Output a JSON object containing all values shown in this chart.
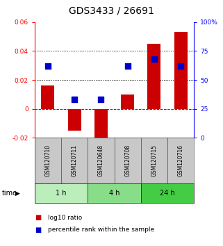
{
  "title": "GDS3433 / 26691",
  "samples": [
    "GSM120710",
    "GSM120711",
    "GSM120648",
    "GSM120708",
    "GSM120715",
    "GSM120716"
  ],
  "log10_ratio": [
    0.016,
    -0.015,
    -0.023,
    0.01,
    0.045,
    0.053
  ],
  "percentile_rank": [
    0.62,
    0.33,
    0.33,
    0.62,
    0.68,
    0.62
  ],
  "bar_color": "#cc0000",
  "dot_color": "#0000cc",
  "left_ylim": [
    -0.02,
    0.06
  ],
  "right_ylim": [
    0,
    100
  ],
  "left_yticks": [
    -0.02,
    0.0,
    0.02,
    0.04,
    0.06
  ],
  "right_yticks": [
    0,
    25,
    50,
    75,
    100
  ],
  "dotted_lines": [
    0.02,
    0.04
  ],
  "time_groups": [
    {
      "label": "1 h",
      "cols": [
        0,
        1
      ],
      "color": "#bbeebb"
    },
    {
      "label": "4 h",
      "cols": [
        2,
        3
      ],
      "color": "#88dd88"
    },
    {
      "label": "24 h",
      "cols": [
        4,
        5
      ],
      "color": "#44cc44"
    }
  ],
  "sample_bg": "#c8c8c8",
  "bar_width": 0.5,
  "dot_size": 30,
  "title_fontsize": 10,
  "tick_fontsize": 6.5,
  "sample_fontsize": 5.5,
  "time_fontsize": 7,
  "legend_fontsize": 6.5
}
